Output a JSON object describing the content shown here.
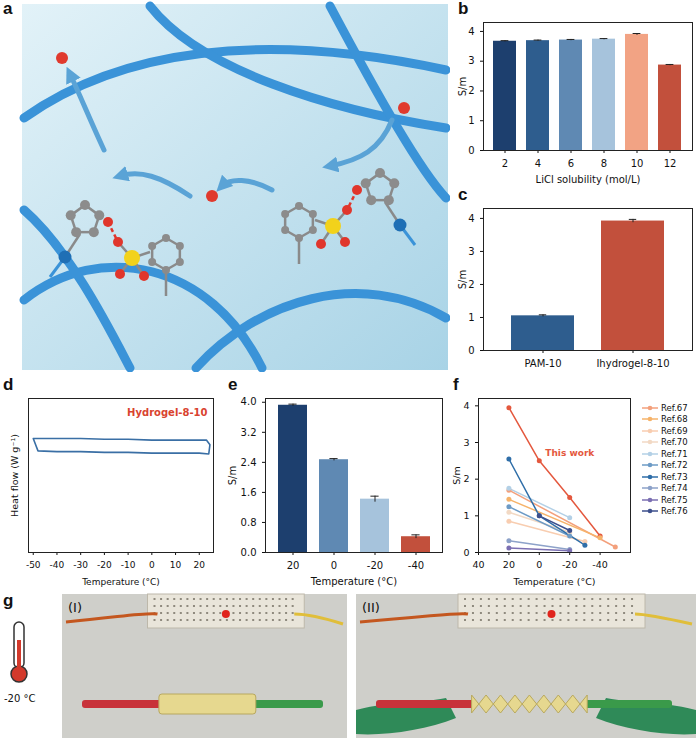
{
  "chart_data": [
    {
      "panel": "a",
      "type": "diagram"
    },
    {
      "panel": "b",
      "type": "bar",
      "xlabel": "LiCl solubility (mol/L)",
      "ylabel": "S/m",
      "categories": [
        2,
        4,
        6,
        8,
        10,
        12
      ],
      "values": [
        3.67,
        3.69,
        3.71,
        3.74,
        3.9,
        2.87
      ],
      "errors": [
        0.02,
        0.02,
        0.02,
        0.02,
        0.03,
        0.02
      ],
      "colors": [
        "#1d3f6e",
        "#2e5d8e",
        "#5f89b3",
        "#a6c3dc",
        "#f2a384",
        "#c2503c"
      ],
      "ylim": [
        0,
        4.3
      ],
      "yticks": [
        0,
        1,
        2,
        3,
        4
      ]
    },
    {
      "panel": "c",
      "type": "bar",
      "ylabel": "S/m",
      "categories": [
        "PAM-10",
        "Ihydrogel-8-10"
      ],
      "values": [
        1.05,
        3.92
      ],
      "errors": [
        0.03,
        0.05
      ],
      "colors": [
        "#2e5d8e",
        "#c2503c"
      ],
      "ylim": [
        0,
        4.3
      ],
      "yticks": [
        0,
        1,
        2,
        3,
        4
      ]
    },
    {
      "panel": "d",
      "type": "line",
      "xlabel": "Temperature (°C)",
      "ylabel": "Heat flow (W g⁻¹)",
      "x": [
        -50,
        -40,
        -30,
        -20,
        -10,
        0,
        10,
        20,
        23,
        24.5,
        24,
        20,
        10,
        0,
        -10,
        -20,
        -30,
        -40,
        -48,
        -50
      ],
      "values": [
        0.74,
        0.74,
        0.74,
        0.735,
        0.735,
        0.73,
        0.73,
        0.73,
        0.73,
        0.7,
        0.64,
        0.645,
        0.645,
        0.645,
        0.65,
        0.65,
        0.655,
        0.655,
        0.66,
        0.74
      ],
      "color": "#3a6fa5",
      "annotations": [
        {
          "text": "Hydrogel-8-10",
          "color": "#d9432f"
        }
      ],
      "xlim": [
        -52,
        26
      ],
      "xticks": [
        -50,
        -40,
        -30,
        -20,
        -10,
        0,
        10,
        20
      ],
      "ylim": [
        0,
        1
      ],
      "yticks": [],
      "tick_labels": "x"
    },
    {
      "panel": "e",
      "type": "bar",
      "xlabel": "Temperature (°C)",
      "ylabel": "S/m",
      "categories": [
        20,
        0,
        -20,
        -40
      ],
      "values": [
        3.92,
        2.47,
        1.42,
        0.42
      ],
      "errors": [
        0.03,
        0.03,
        0.08,
        0.05
      ],
      "colors": [
        "#1d3f6e",
        "#5f89b3",
        "#a6c3dc",
        "#c2503c"
      ],
      "ylim": [
        0,
        4.1
      ],
      "yticks": [
        {
          "value": 0,
          "label": "0.0"
        },
        {
          "value": 0.8,
          "label": "0.8"
        },
        {
          "value": 1.6,
          "label": "1.6"
        },
        {
          "value": 2.4,
          "label": "2.4"
        },
        {
          "value": 3.2,
          "label": "3.2"
        },
        {
          "value": 4,
          "label": "4.0"
        }
      ]
    },
    {
      "panel": "f",
      "type": "line",
      "xlabel": "Temperature (°C)",
      "ylabel": "S/m",
      "marker": "circle",
      "legend": "right",
      "xlim": [
        40,
        -60
      ],
      "xticks": [
        40,
        20,
        0,
        -20,
        -40
      ],
      "ylim": [
        0,
        4.2
      ],
      "yticks": [
        0,
        1,
        2,
        3,
        4
      ],
      "series": [
        {
          "name": "This work",
          "color": "#e4583e",
          "x": [
            20,
            0,
            -20,
            -40
          ],
          "values": [
            3.95,
            2.5,
            1.5,
            0.45
          ]
        },
        {
          "name": "Ref.67",
          "color": "#f3a07c",
          "x": [
            20,
            -50
          ],
          "values": [
            1.7,
            0.15
          ]
        },
        {
          "name": "Ref.68",
          "color": "#f6b36a",
          "x": [
            20,
            -40
          ],
          "values": [
            1.45,
            0.4
          ]
        },
        {
          "name": "Ref.69",
          "color": "#f8cdb0",
          "x": [
            20,
            -30
          ],
          "values": [
            0.85,
            0.3
          ]
        },
        {
          "name": "Ref.70",
          "color": "#f2d9c4",
          "x": [
            20,
            -20
          ],
          "values": [
            1.1,
            0.55
          ]
        },
        {
          "name": "Ref.71",
          "color": "#b3d0e6",
          "x": [
            20,
            -20
          ],
          "values": [
            1.75,
            0.95
          ]
        },
        {
          "name": "Ref.72",
          "color": "#6d9bc6",
          "x": [
            20,
            -20
          ],
          "values": [
            1.25,
            0.45
          ]
        },
        {
          "name": "Ref.73",
          "color": "#2f6ea8",
          "x": [
            20,
            0,
            -30
          ],
          "values": [
            2.55,
            1.0,
            0.2
          ]
        },
        {
          "name": "Ref.74",
          "color": "#8da2c9",
          "x": [
            20,
            -20
          ],
          "values": [
            0.32,
            0.08
          ]
        },
        {
          "name": "Ref.75",
          "color": "#7b6fb2",
          "x": [
            20,
            -20
          ],
          "values": [
            0.12,
            0.05
          ]
        },
        {
          "name": "Ref.76",
          "color": "#3d4f8c",
          "x": [
            0,
            -20
          ],
          "values": [
            1.0,
            0.6
          ]
        }
      ]
    },
    {
      "panel": "g",
      "type": "photo",
      "annotations": [
        "-20 °C",
        "(I)",
        "(II)"
      ]
    }
  ]
}
